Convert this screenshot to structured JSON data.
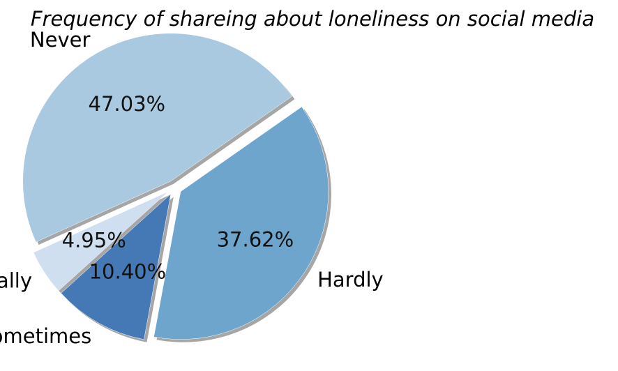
{
  "chart_data": {
    "type": "pie",
    "title": "Frequency of shareing about loneliness on social media",
    "categories": [
      "Never",
      "Usually",
      "Sometimes",
      "Hardly"
    ],
    "values": [
      47.03,
      4.95,
      10.4,
      37.62
    ],
    "percent_labels": [
      "47.03%",
      "4.95%",
      "10.40%",
      "37.62%"
    ],
    "colors": [
      "#a8c9e0",
      "#d0dff0",
      "#4479b6",
      "#6ea5cd"
    ],
    "start_angle_deg": 35,
    "direction": "counterclockwise",
    "exploded": true,
    "shadow": true
  }
}
